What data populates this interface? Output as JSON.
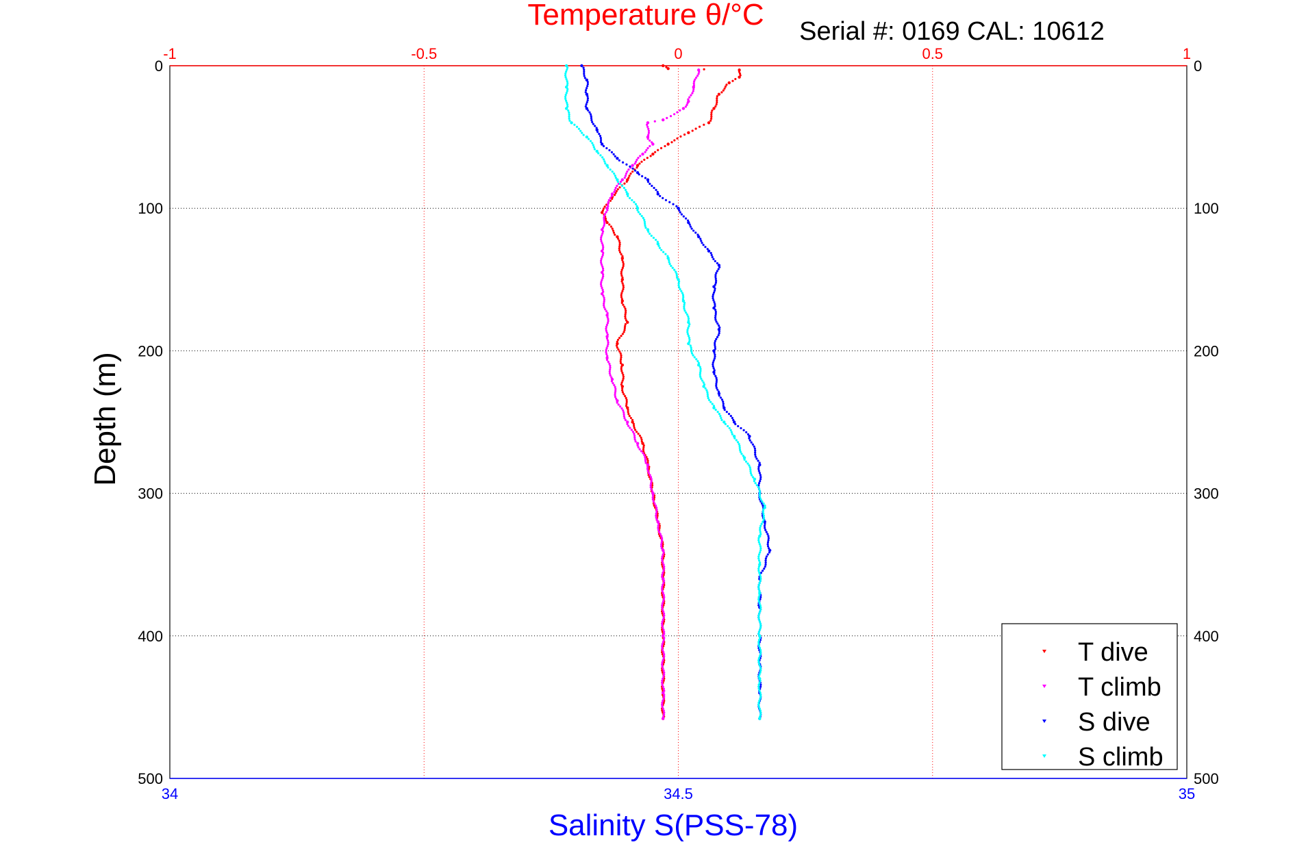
{
  "chart_data": {
    "type": "scatter",
    "title": "Temperature θ/°C",
    "subtitle": "Serial #: 0169 CAL: 10612",
    "xlabel": "Salinity S(PSS-78)",
    "ylabel": "Depth (m)",
    "x2label": "Temperature θ/°C",
    "ylim": [
      0,
      500
    ],
    "xlim": [
      34,
      35
    ],
    "x2lim": [
      -1,
      1
    ],
    "yticks": [
      "0",
      "100",
      "200",
      "300",
      "400",
      "500"
    ],
    "xticks": [
      "34",
      "34.5",
      "35"
    ],
    "x2ticks": [
      "-1",
      "-0.5",
      "0",
      "0.5",
      "1"
    ],
    "grid": true,
    "legend_position": "bottom-right",
    "colors": {
      "temperature_axis": "#ff0000",
      "salinity_axis": "#0000ff",
      "t_dive": "#ff0000",
      "t_climb": "#ff00ff",
      "s_dive": "#0000ff",
      "s_climb": "#00ffff"
    },
    "series": [
      {
        "name": "T dive",
        "axis": "temperature",
        "color": "#ff0000",
        "points": [
          [
            -0.03,
            0
          ],
          [
            -0.02,
            2
          ],
          [
            0.12,
            3
          ],
          [
            0.12,
            8
          ],
          [
            0.1,
            12
          ],
          [
            0.08,
            20
          ],
          [
            0.07,
            30
          ],
          [
            0.06,
            40
          ],
          [
            0.02,
            47
          ],
          [
            -0.02,
            55
          ],
          [
            -0.05,
            62
          ],
          [
            -0.08,
            70
          ],
          [
            -0.1,
            80
          ],
          [
            -0.13,
            92
          ],
          [
            -0.15,
            103
          ],
          [
            -0.14,
            110
          ],
          [
            -0.12,
            120
          ],
          [
            -0.11,
            135
          ],
          [
            -0.11,
            150
          ],
          [
            -0.11,
            165
          ],
          [
            -0.1,
            180
          ],
          [
            -0.12,
            195
          ],
          [
            -0.11,
            210
          ],
          [
            -0.11,
            225
          ],
          [
            -0.1,
            240
          ],
          [
            -0.09,
            250
          ],
          [
            -0.07,
            265
          ],
          [
            -0.06,
            280
          ],
          [
            -0.05,
            300
          ],
          [
            -0.04,
            320
          ],
          [
            -0.03,
            340
          ],
          [
            -0.03,
            360
          ],
          [
            -0.03,
            400
          ],
          [
            -0.03,
            440
          ],
          [
            -0.03,
            458
          ]
        ]
      },
      {
        "name": "T climb",
        "axis": "temperature",
        "color": "#ff00ff",
        "points": [
          [
            0.04,
            3
          ],
          [
            0.03,
            15
          ],
          [
            0.02,
            25
          ],
          [
            0.01,
            30
          ],
          [
            -0.03,
            38
          ],
          [
            -0.06,
            40
          ],
          [
            -0.06,
            50
          ],
          [
            -0.05,
            55
          ],
          [
            -0.07,
            62
          ],
          [
            -0.09,
            70
          ],
          [
            -0.11,
            80
          ],
          [
            -0.13,
            90
          ],
          [
            -0.14,
            100
          ],
          [
            -0.15,
            115
          ],
          [
            -0.15,
            130
          ],
          [
            -0.15,
            145
          ],
          [
            -0.15,
            160
          ],
          [
            -0.14,
            175
          ],
          [
            -0.14,
            190
          ],
          [
            -0.14,
            205
          ],
          [
            -0.13,
            220
          ],
          [
            -0.12,
            235
          ],
          [
            -0.1,
            250
          ],
          [
            -0.08,
            265
          ],
          [
            -0.06,
            280
          ],
          [
            -0.05,
            300
          ],
          [
            -0.04,
            320
          ],
          [
            -0.03,
            340
          ],
          [
            -0.03,
            360
          ],
          [
            -0.03,
            400
          ],
          [
            -0.03,
            440
          ],
          [
            -0.03,
            458
          ]
        ]
      },
      {
        "name": "S dive",
        "axis": "salinity",
        "color": "#0000ff",
        "points": [
          [
            34.405,
            0
          ],
          [
            34.41,
            10
          ],
          [
            34.41,
            20
          ],
          [
            34.41,
            30
          ],
          [
            34.42,
            45
          ],
          [
            34.425,
            55
          ],
          [
            34.44,
            65
          ],
          [
            34.46,
            75
          ],
          [
            34.47,
            80
          ],
          [
            34.48,
            90
          ],
          [
            34.5,
            100
          ],
          [
            34.51,
            110
          ],
          [
            34.52,
            120
          ],
          [
            34.53,
            130
          ],
          [
            34.54,
            140
          ],
          [
            34.535,
            155
          ],
          [
            34.535,
            170
          ],
          [
            34.54,
            185
          ],
          [
            34.535,
            200
          ],
          [
            34.535,
            215
          ],
          [
            34.54,
            230
          ],
          [
            34.545,
            240
          ],
          [
            34.555,
            250
          ],
          [
            34.57,
            260
          ],
          [
            34.58,
            280
          ],
          [
            34.58,
            300
          ],
          [
            34.585,
            320
          ],
          [
            34.59,
            340
          ],
          [
            34.58,
            360
          ],
          [
            34.58,
            380
          ],
          [
            34.58,
            400
          ],
          [
            34.58,
            420
          ],
          [
            34.58,
            440
          ],
          [
            34.58,
            458
          ]
        ]
      },
      {
        "name": "S climb",
        "axis": "salinity",
        "color": "#00ffff",
        "points": [
          [
            34.39,
            0
          ],
          [
            34.39,
            15
          ],
          [
            34.39,
            30
          ],
          [
            34.395,
            40
          ],
          [
            34.41,
            50
          ],
          [
            34.42,
            60
          ],
          [
            34.43,
            70
          ],
          [
            34.44,
            80
          ],
          [
            34.45,
            90
          ],
          [
            34.46,
            100
          ],
          [
            34.47,
            115
          ],
          [
            34.48,
            125
          ],
          [
            34.49,
            135
          ],
          [
            34.5,
            150
          ],
          [
            34.505,
            165
          ],
          [
            34.51,
            180
          ],
          [
            34.51,
            195
          ],
          [
            34.52,
            210
          ],
          [
            34.525,
            225
          ],
          [
            34.535,
            240
          ],
          [
            34.545,
            250
          ],
          [
            34.555,
            260
          ],
          [
            34.565,
            275
          ],
          [
            34.575,
            290
          ],
          [
            34.585,
            310
          ],
          [
            34.58,
            330
          ],
          [
            34.58,
            350
          ],
          [
            34.58,
            370
          ],
          [
            34.58,
            400
          ],
          [
            34.58,
            430
          ],
          [
            34.58,
            458
          ]
        ]
      }
    ]
  }
}
